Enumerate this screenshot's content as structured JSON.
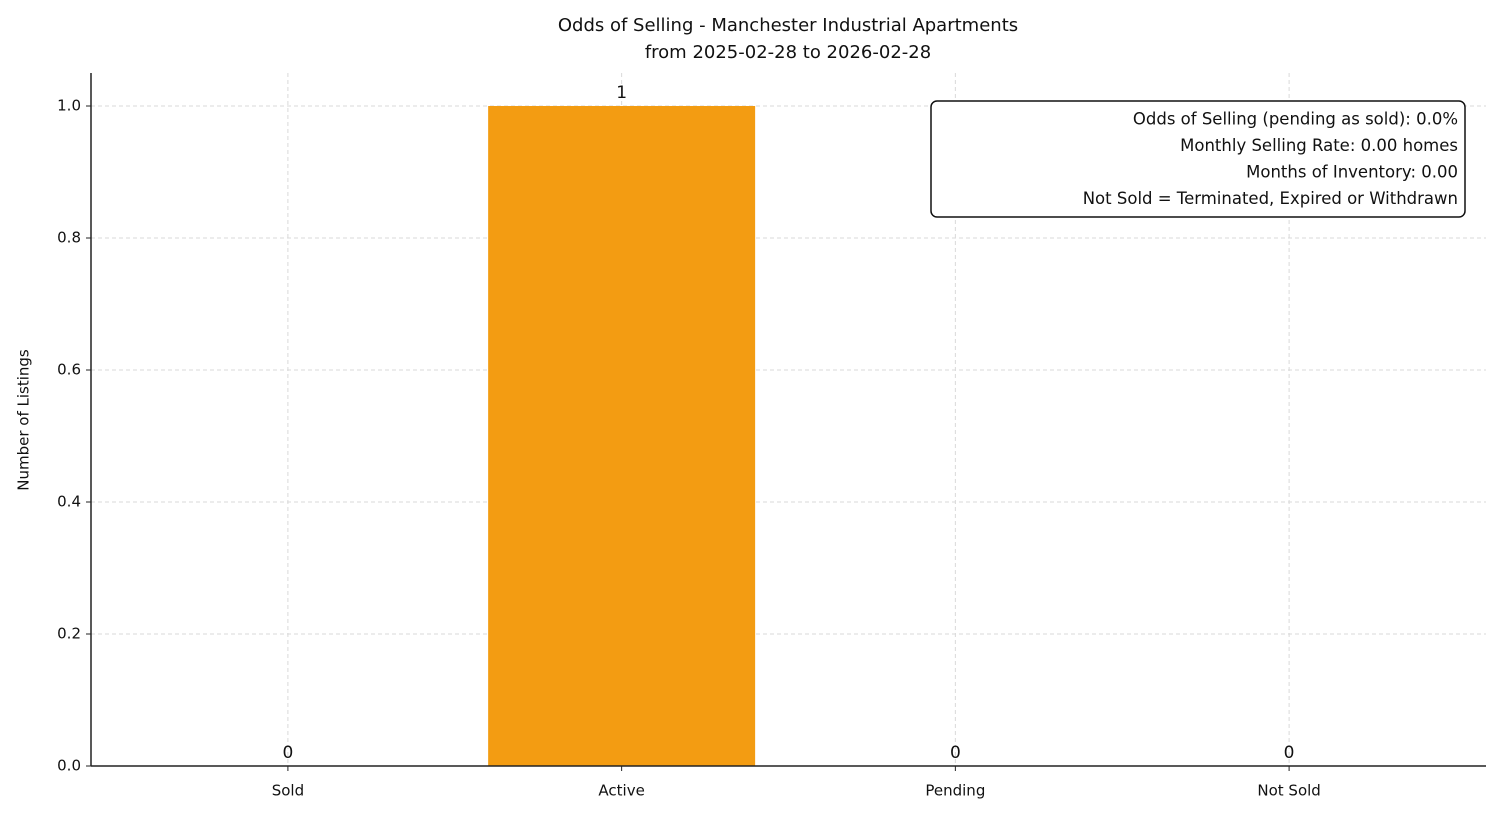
{
  "chart_data": {
    "type": "bar",
    "title": "Odds of Selling - Manchester Industrial Apartments",
    "subtitle": "from 2025-02-28 to 2026-02-28",
    "y_label": "Number of Listings",
    "categories": [
      "Sold",
      "Active",
      "Pending",
      "Not Sold"
    ],
    "values": [
      0,
      1,
      0,
      0
    ],
    "color": "#f39c12",
    "ylim": [
      0,
      1.05
    ],
    "yticks": [
      {
        "value": 0,
        "label": "0.0"
      },
      0.2,
      0.4,
      0.6,
      0.8,
      {
        "value": 1,
        "label": "1.0"
      }
    ],
    "grid": true,
    "annotations": [
      "Odds of Selling (pending as sold): 0.0%",
      "Monthly Selling Rate: 0.00 homes",
      "Months of Inventory: 0.00",
      "Not Sold = Terminated, Expired or Withdrawn"
    ]
  }
}
